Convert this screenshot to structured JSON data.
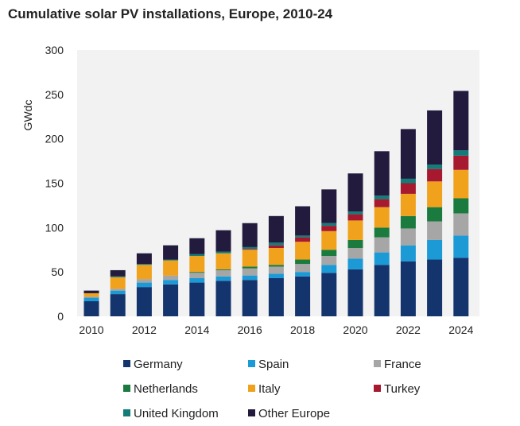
{
  "chart_data": {
    "type": "bar",
    "stacked": true,
    "title": "Cumulative solar PV installations, Europe, 2010-24",
    "xlabel": "",
    "ylabel": "GWdc",
    "ylim": [
      0,
      300
    ],
    "yticks": [
      "0",
      "50",
      "100",
      "150",
      "200",
      "250",
      "300"
    ],
    "xtick_labels": [
      "2010",
      "2012",
      "2014",
      "2016",
      "2018",
      "2020",
      "2022",
      "2024"
    ],
    "categories": [
      "2010",
      "2011",
      "2012",
      "2013",
      "2014",
      "2015",
      "2016",
      "2017",
      "2018",
      "2019",
      "2020",
      "2021",
      "2022",
      "2023",
      "2024"
    ],
    "grid": false,
    "plot_background": "#f2f2f2",
    "legend_position": "bottom",
    "series": [
      {
        "name": "Germany",
        "color": "#14346e",
        "values": [
          17,
          25,
          33,
          36,
          38,
          40,
          41,
          43,
          45,
          49,
          53,
          58,
          62,
          64,
          66
        ]
      },
      {
        "name": "Spain",
        "color": "#1c9ad6",
        "values": [
          4,
          4,
          5,
          5,
          5,
          5,
          5,
          5,
          5,
          9,
          12,
          14,
          18,
          22,
          25
        ]
      },
      {
        "name": "France",
        "color": "#a6a6a6",
        "values": [
          1,
          2,
          4,
          5,
          6,
          7,
          8,
          8,
          9,
          10,
          12,
          17,
          19,
          21,
          25
        ]
      },
      {
        "name": "Netherlands",
        "color": "#1b7a3e",
        "values": [
          0,
          0,
          0,
          0,
          1,
          1,
          2,
          2,
          5,
          7,
          9,
          11,
          14,
          16,
          17
        ]
      },
      {
        "name": "Italy",
        "color": "#f0a21c",
        "values": [
          4,
          13,
          16,
          17,
          18,
          18,
          19,
          19,
          20,
          21,
          22,
          23,
          25,
          29,
          32
        ]
      },
      {
        "name": "Turkey",
        "color": "#a6192e",
        "values": [
          0,
          0,
          0,
          0,
          0,
          0,
          1,
          3,
          5,
          6,
          7,
          9,
          12,
          14,
          16
        ]
      },
      {
        "name": "United Kingdom",
        "color": "#127c7a",
        "values": [
          0,
          1,
          1,
          1,
          2,
          2,
          2,
          3,
          2,
          3,
          3,
          4,
          5,
          5,
          6
        ]
      },
      {
        "name": "Other Europe",
        "color": "#231b3d",
        "values": [
          3,
          7,
          12,
          16,
          18,
          24,
          27,
          30,
          33,
          38,
          43,
          50,
          56,
          61,
          67
        ]
      }
    ]
  }
}
